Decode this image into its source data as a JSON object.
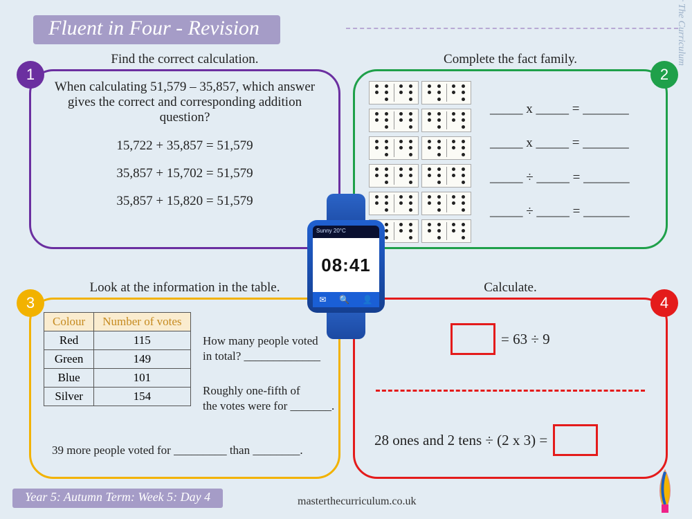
{
  "page": {
    "title": "Fluent in Four - Revision",
    "footer": "Year 5: Autumn Term: Week 5: Day 4",
    "url": "masterthecurriculum.co.uk",
    "brand": "Master The Curriculum",
    "background": "#e3ecf3",
    "title_bg": "#a59cc7"
  },
  "watch": {
    "time": "08:41",
    "weather": "Sunny 20°C",
    "strap_color": "#1c4aa3",
    "case_color": "#153f90"
  },
  "cards": {
    "c1": {
      "number": "1",
      "color": "#6b2fa0",
      "title": "Find the correct calculation.",
      "prompt": "When calculating 51,579 – 35,857, which answer gives the correct and corresponding addition question?",
      "options": [
        "15,722 + 35,857 = 51,579",
        "35,857 + 15,702 = 51,579",
        "35,857 + 15,820 = 51,579"
      ]
    },
    "c2": {
      "number": "2",
      "color": "#1fa04a",
      "title": "Complete the fact family.",
      "domino_grid": {
        "rows": 6,
        "cols": 2,
        "pips_per_half": 5
      },
      "lines": [
        "_____ x _____  =  _______",
        "_____ x _____  =  _______",
        "_____ ÷ _____  =  _______",
        "_____ ÷ _____  =  _______"
      ]
    },
    "c3": {
      "number": "3",
      "color": "#f2b200",
      "title": "Look at the information in the table.",
      "table": {
        "columns": [
          "Colour",
          "Number of votes"
        ],
        "rows": [
          [
            "Red",
            "115"
          ],
          [
            "Green",
            "149"
          ],
          [
            "Blue",
            "101"
          ],
          [
            "Silver",
            "154"
          ]
        ],
        "header_bg": "#faeccf"
      },
      "q1a": "How many people voted",
      "q1b": "in total?  _____________",
      "q2a": "Roughly one-fifth of",
      "q2b": "the votes were for _______.",
      "q3": "39 more people voted for _________ than ________."
    },
    "c4": {
      "number": "4",
      "color": "#e41b1b",
      "title": "Calculate.",
      "line1": "= 63 ÷ 9",
      "line2": "28 ones and 2 tens ÷ (2 x 3) ="
    }
  }
}
